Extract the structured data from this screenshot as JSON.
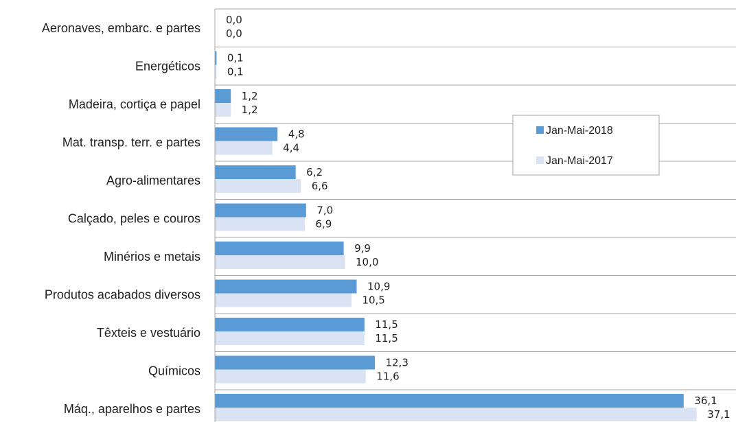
{
  "chart_data": {
    "type": "bar",
    "orientation": "horizontal",
    "categories": [
      "Aeronaves, embarc. e partes",
      "Energéticos",
      "Madeira, cortiça e papel",
      "Mat. transp. terr. e partes",
      "Agro-alimentares",
      "Calçado, peles e couros",
      "Minérios e metais",
      "Produtos acabados diversos",
      "Têxteis e vestuário",
      "Químicos",
      "Máq., aparelhos e partes"
    ],
    "series": [
      {
        "name": "Jan-Mai-2018",
        "color": "#5b9bd5",
        "values": [
          0.0,
          0.1,
          1.2,
          4.8,
          6.2,
          7.0,
          9.9,
          10.9,
          11.5,
          12.3,
          36.1
        ],
        "labels": [
          "0,0",
          "0,1",
          "1,2",
          "4,8",
          "6,2",
          "7,0",
          "9,9",
          "10,9",
          "11,5",
          "12,3",
          "36,1"
        ]
      },
      {
        "name": "Jan-Mai-2017",
        "color": "#dae3f3",
        "values": [
          0.0,
          0.1,
          1.2,
          4.4,
          6.6,
          6.9,
          10.0,
          10.5,
          11.5,
          11.6,
          37.1
        ],
        "labels": [
          "0,0",
          "0,1",
          "1,2",
          "4,4",
          "6,6",
          "6,9",
          "10,0",
          "10,5",
          "11,5",
          "11,6",
          "37,1"
        ]
      }
    ],
    "xlim": [
      0,
      40
    ],
    "grid": "horizontal-category-separators",
    "legend_position": "right-middle"
  }
}
